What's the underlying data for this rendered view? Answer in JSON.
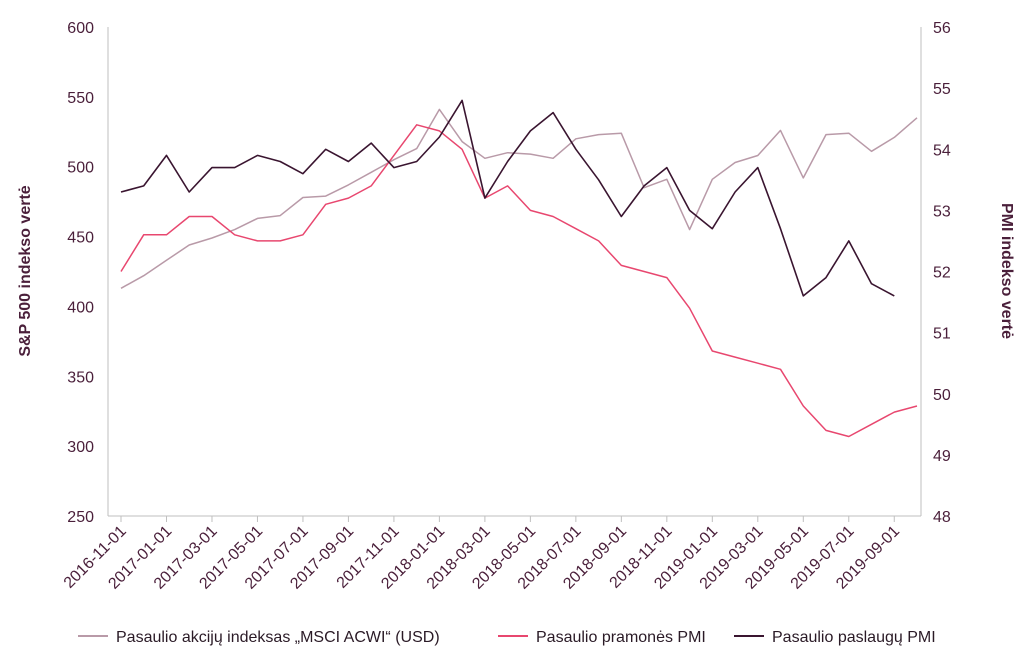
{
  "chart_data": {
    "type": "line",
    "x": [
      "2016-11-01",
      "2016-12-01",
      "2017-01-01",
      "2017-02-01",
      "2017-03-01",
      "2017-04-01",
      "2017-05-01",
      "2017-06-01",
      "2017-07-01",
      "2017-08-01",
      "2017-09-01",
      "2017-10-01",
      "2017-11-01",
      "2017-12-01",
      "2018-01-01",
      "2018-02-01",
      "2018-03-01",
      "2018-04-01",
      "2018-05-01",
      "2018-06-01",
      "2018-07-01",
      "2018-08-01",
      "2018-09-01",
      "2018-10-01",
      "2018-11-01",
      "2018-12-01",
      "2019-01-01",
      "2019-02-01",
      "2019-03-01",
      "2019-04-01",
      "2019-05-01",
      "2019-06-01",
      "2019-07-01",
      "2019-08-01",
      "2019-09-01",
      "2019-10-01"
    ],
    "x_tick_labels": [
      "2016-11-01",
      "2017-01-01",
      "2017-03-01",
      "2017-05-01",
      "2017-07-01",
      "2017-09-01",
      "2017-11-01",
      "2018-01-01",
      "2018-03-01",
      "2018-05-01",
      "2018-07-01",
      "2018-09-01",
      "2018-11-01",
      "2019-01-01",
      "2019-03-01",
      "2019-05-01",
      "2019-07-01",
      "2019-09-01"
    ],
    "y_left": {
      "label": "S&P 500 indekso vertė",
      "range": [
        250,
        600
      ],
      "ticks": [
        "250",
        "300",
        "350",
        "400",
        "450",
        "500",
        "550",
        "600"
      ]
    },
    "y_right": {
      "label": "PMI indekso vertė",
      "range": [
        48,
        56
      ],
      "ticks": [
        "48",
        "49",
        "50",
        "51",
        "52",
        "53",
        "54",
        "55",
        "56"
      ]
    },
    "grid": false,
    "legend_position": "bottom",
    "series": [
      {
        "name": "Pasaulio akcijų indeksas „MSCI ACWI“ (USD)",
        "axis": "left",
        "color": "#b99aa8",
        "values": [
          413,
          422,
          433,
          444,
          449,
          455,
          463,
          465,
          478,
          479,
          487,
          496,
          505,
          513,
          541,
          518,
          506,
          510,
          509,
          506,
          520,
          523,
          524,
          485,
          491,
          455,
          491,
          503,
          508,
          526,
          492,
          523,
          524,
          511,
          521,
          535
        ]
      },
      {
        "name": "Pasaulio pramonės PMI",
        "axis": "right",
        "color": "#e8476f",
        "values": [
          52.0,
          52.6,
          52.6,
          52.9,
          52.9,
          52.6,
          52.5,
          52.5,
          52.6,
          53.1,
          53.2,
          53.4,
          53.9,
          54.4,
          54.3,
          54.0,
          53.2,
          53.4,
          53.0,
          52.9,
          52.7,
          52.5,
          52.1,
          52.0,
          51.9,
          51.4,
          50.7,
          50.6,
          50.5,
          50.4,
          49.8,
          49.4,
          49.3,
          49.5,
          49.7,
          49.8
        ]
      },
      {
        "name": "Pasaulio paslaugų PMI",
        "axis": "right",
        "color": "#3a1530",
        "values": [
          53.3,
          53.4,
          53.9,
          53.3,
          53.7,
          53.7,
          53.9,
          53.8,
          53.6,
          54.0,
          53.8,
          54.1,
          53.7,
          53.8,
          54.2,
          54.8,
          53.2,
          53.8,
          54.3,
          54.6,
          54.0,
          53.5,
          52.9,
          53.4,
          53.7,
          53.0,
          52.7,
          53.3,
          53.7,
          52.7,
          51.6,
          51.9,
          52.5,
          51.8,
          51.6,
          null
        ]
      }
    ]
  }
}
